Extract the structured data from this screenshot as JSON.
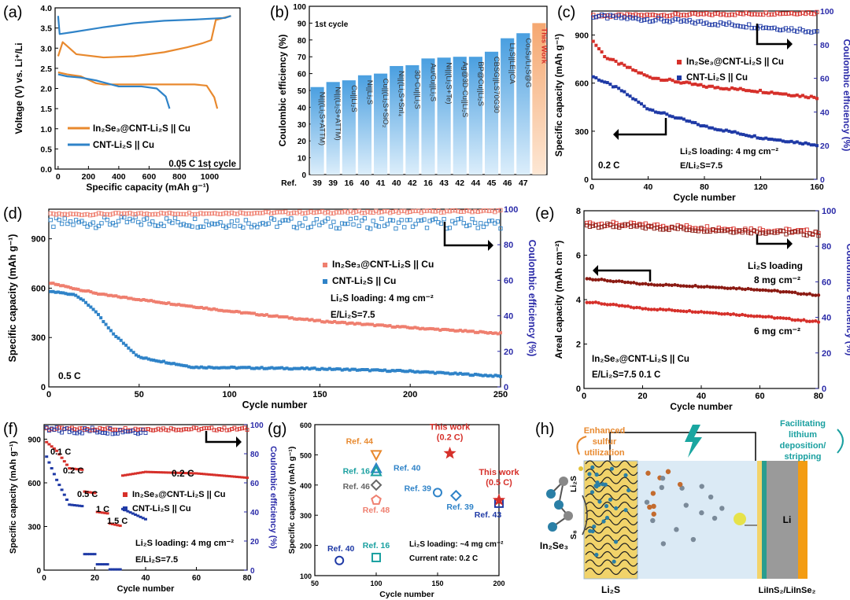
{
  "colors": {
    "orange": "#e8892e",
    "blue": "#2f83c8",
    "red": "#d6302a",
    "navy": "#1f3aa6",
    "salmon": "#ef7f6f",
    "teal": "#1aa0a0",
    "gray": "#666666",
    "darkred": "#8b1a12",
    "barLight": "#dceefb",
    "barDark": "#4a9fe0",
    "barWork": "#f5a770"
  },
  "chart_data": [
    {
      "panel": "(a)",
      "type": "line",
      "xlabel": "Specific capacity (mAh g⁻¹)",
      "ylabel": "Voltage (V) vs. Li⁺/Li",
      "xlim": [
        -20,
        1200
      ],
      "ylim": [
        0,
        4.0
      ],
      "xticks": [
        "0",
        "200",
        "400",
        "600",
        "800",
        "1000"
      ],
      "yticks": [
        "0.0",
        "0.5",
        "1.0",
        "1.5",
        "2.0",
        "2.5",
        "3.0",
        "3.5",
        "4.0"
      ],
      "series": [
        {
          "name": "In₂Se₃@CNT-Li₂S || Cu",
          "color": "orange",
          "charge": [
            [
              0,
              2.8
            ],
            [
              30,
              3.15
            ],
            [
              120,
              2.85
            ],
            [
              300,
              2.77
            ],
            [
              500,
              2.8
            ],
            [
              700,
              2.9
            ],
            [
              850,
              3.02
            ],
            [
              950,
              3.12
            ],
            [
              1010,
              3.2
            ],
            [
              1040,
              3.7
            ],
            [
              1140,
              3.8
            ]
          ],
          "discharge": [
            [
              0,
              2.4
            ],
            [
              60,
              2.35
            ],
            [
              150,
              2.3
            ],
            [
              250,
              2.13
            ],
            [
              300,
              2.1
            ],
            [
              500,
              2.1
            ],
            [
              700,
              2.1
            ],
            [
              900,
              2.1
            ],
            [
              980,
              2.07
            ],
            [
              1030,
              1.78
            ],
            [
              1050,
              1.5
            ]
          ]
        },
        {
          "name": "CNT-Li₂S || Cu",
          "color": "blue",
          "charge": [
            [
              0,
              3.8
            ],
            [
              10,
              3.35
            ],
            [
              100,
              3.4
            ],
            [
              300,
              3.52
            ],
            [
              500,
              3.62
            ],
            [
              700,
              3.68
            ],
            [
              900,
              3.71
            ],
            [
              1100,
              3.75
            ],
            [
              1140,
              3.8
            ]
          ],
          "discharge": [
            [
              0,
              2.35
            ],
            [
              60,
              2.3
            ],
            [
              150,
              2.27
            ],
            [
              250,
              2.2
            ],
            [
              400,
              2.05
            ],
            [
              550,
              2.05
            ],
            [
              650,
              2.0
            ],
            [
              710,
              1.8
            ],
            [
              735,
              1.5
            ]
          ]
        }
      ],
      "annotations": [
        "0.05 C",
        "1st cycle"
      ]
    },
    {
      "panel": "(b)",
      "type": "bar",
      "ylabel": "Coulombic efficiency (%)",
      "ylim": [
        0,
        100
      ],
      "yticks": [
        "0",
        "10",
        "20",
        "30",
        "40",
        "50",
        "60",
        "70",
        "80",
        "90",
        "100"
      ],
      "title": "1st cycle",
      "xprefix": "Ref.",
      "categories": [
        "Ni||(Li₂S+ATTM)",
        "Ni||(Li₂S+ATTM)",
        "Cu||Li₂S",
        "Ni||Li₂S",
        "Cu||(Li₂S+SiO₂",
        "Ni||(Li₂S+SnI₄",
        "3D-Cu||Li₂S",
        "Au/Cu||Li₂S",
        "Ni||(Li₂S+Te)",
        "Ag@3D-Cu||Li₂S",
        "BP@Cu||Li₂S",
        "CBSG||LS70G30",
        "Li₂S||LE||CA",
        "Co₉S₈/Li₂S@G",
        "This Work"
      ],
      "refs": [
        "39",
        "39",
        "16",
        "40",
        "41",
        "40",
        "42",
        "16",
        "43",
        "42",
        "44",
        "45",
        "46",
        "47",
        ""
      ],
      "values": [
        52,
        55,
        56,
        59,
        60,
        64.5,
        65,
        69,
        69.5,
        70,
        70,
        73,
        81,
        84,
        90
      ]
    },
    {
      "panel": "(c)",
      "type": "scatter",
      "xlabel": "Cycle number",
      "ylabel": "Specific capacity (mAh g⁻¹)",
      "y2label": "Coulombic efficiency (%)",
      "xlim": [
        0,
        160
      ],
      "ylim": [
        0,
        1050
      ],
      "y2lim": [
        0,
        100
      ],
      "xticks": [
        "0",
        "40",
        "80",
        "120",
        "160"
      ],
      "yticks": [
        "0",
        "300",
        "600",
        "900"
      ],
      "y2ticks": [
        "0",
        "20",
        "40",
        "60",
        "80",
        "100"
      ],
      "series": [
        {
          "name": "In₂Se₃@CNT-Li₂S || Cu",
          "color": "red",
          "cap": [
            [
              1,
              860
            ],
            [
              10,
              760
            ],
            [
              40,
              640
            ],
            [
              80,
              580
            ],
            [
              120,
              550
            ],
            [
              160,
              510
            ]
          ],
          "ce": [
            [
              1,
              97
            ],
            [
              160,
              99
            ]
          ]
        },
        {
          "name": "CNT-Li₂S || Cu",
          "color": "navy",
          "cap": [
            [
              1,
              640
            ],
            [
              20,
              560
            ],
            [
              40,
              440
            ],
            [
              80,
              330
            ],
            [
              120,
              260
            ],
            [
              160,
              215
            ]
          ],
          "ce": [
            [
              1,
              97
            ],
            [
              40,
              95
            ],
            [
              100,
              92
            ],
            [
              160,
              88
            ]
          ]
        }
      ],
      "annotations": [
        "0.2 C",
        "Li₂S loading: 4 mg cm⁻²",
        "E/Li₂S=7.5"
      ]
    },
    {
      "panel": "(d)",
      "type": "scatter",
      "xlabel": "Cycle number",
      "ylabel": "Specific capacity (mAh g⁻¹)",
      "y2label": "Coulombic efficiency (%)",
      "xlim": [
        0,
        250
      ],
      "ylim": [
        0,
        1080
      ],
      "y2lim": [
        0,
        100
      ],
      "xticks": [
        "0",
        "50",
        "100",
        "150",
        "200",
        "250"
      ],
      "yticks": [
        "0",
        "300",
        "600",
        "900"
      ],
      "y2ticks": [
        "0",
        "20",
        "40",
        "60",
        "80",
        "100"
      ],
      "series": [
        {
          "name": "In₂Se₃@CNT-Li₂S || Cu",
          "color": "salmon",
          "cap": [
            [
              1,
              630
            ],
            [
              30,
              560
            ],
            [
              100,
              460
            ],
            [
              150,
              400
            ],
            [
              200,
              360
            ],
            [
              250,
              325
            ]
          ],
          "ce": [
            [
              1,
              97
            ],
            [
              250,
              99
            ]
          ]
        },
        {
          "name": "CNT-Li₂S || Cu",
          "color": "blue",
          "cap": [
            [
              1,
              580
            ],
            [
              15,
              560
            ],
            [
              25,
              470
            ],
            [
              35,
              330
            ],
            [
              50,
              180
            ],
            [
              80,
              120
            ],
            [
              150,
              110
            ],
            [
              200,
              95
            ],
            [
              250,
              65
            ]
          ],
          "ce": [
            [
              1,
              92
            ],
            [
              50,
              93
            ],
            [
              150,
              92
            ],
            [
              250,
              92
            ]
          ]
        }
      ],
      "annotations": [
        "0.5 C",
        "Li₂S loading: 4 mg cm⁻²",
        "E/Li₂S=7.5"
      ]
    },
    {
      "panel": "(e)",
      "type": "scatter",
      "xlabel": "Cycle number",
      "ylabel": "Areal capacity (mAh cm⁻²)",
      "y2label": "Coulombic efficiency (%)",
      "xlim": [
        0,
        80
      ],
      "ylim": [
        0,
        8
      ],
      "y2lim": [
        0,
        100
      ],
      "xticks": [
        "0",
        "20",
        "40",
        "60",
        "80"
      ],
      "yticks": [
        "0",
        "2",
        "4",
        "6",
        "8"
      ],
      "y2ticks": [
        "0",
        "20",
        "40",
        "60",
        "80",
        "100"
      ],
      "series": [
        {
          "name": "8 mg cm⁻²",
          "color": "darkred",
          "cap": [
            [
              1,
              4.95
            ],
            [
              20,
              4.7
            ],
            [
              40,
              4.6
            ],
            [
              60,
              4.45
            ],
            [
              80,
              4.2
            ]
          ],
          "ce": [
            [
              1,
              93
            ],
            [
              80,
              88
            ]
          ]
        },
        {
          "name": "6 mg cm⁻²",
          "color": "red",
          "cap": [
            [
              1,
              3.9
            ],
            [
              20,
              3.6
            ],
            [
              40,
              3.45
            ],
            [
              60,
              3.25
            ],
            [
              80,
              3.0
            ]
          ],
          "ce": [
            [
              1,
              92
            ],
            [
              80,
              87
            ]
          ]
        }
      ],
      "annotations": [
        "Li₂S loading",
        "8 mg cm⁻²",
        "6 mg cm⁻²",
        "In₂Se₃@CNT-Li₂S || Cu",
        "E/Li₂S=7.5   0.1 C"
      ]
    },
    {
      "panel": "(f)",
      "type": "scatter",
      "xlabel": "Cycle number",
      "ylabel": "Specific capacity (mAh g⁻¹)",
      "y2label": "Coulombic efficiency (%)",
      "xlim": [
        0,
        80
      ],
      "ylim": [
        0,
        1000
      ],
      "y2lim": [
        0,
        100
      ],
      "xticks": [
        "0",
        "20",
        "40",
        "60",
        "80"
      ],
      "yticks": [
        "0",
        "300",
        "600",
        "900"
      ],
      "y2ticks": [
        "0",
        "20",
        "40",
        "60",
        "80",
        "100"
      ],
      "rate_labels": [
        "0.1 C",
        "0.2 C",
        "0.5 C",
        "1 C",
        "1.5 C",
        "0.2 C"
      ],
      "series": [
        {
          "name": "In₂Se₃@CNT-Li₂S || Cu",
          "color": "red",
          "cap": [
            [
              1,
              880
            ],
            [
              3,
              850
            ],
            [
              5,
              820
            ],
            [
              10,
              700
            ],
            [
              15,
              690
            ],
            [
              16,
              540
            ],
            [
              20,
              530
            ],
            [
              21,
              400
            ],
            [
              25,
              390
            ],
            [
              26,
              320
            ],
            [
              30,
              305
            ],
            [
              31,
              650
            ],
            [
              40,
              675
            ],
            [
              60,
              665
            ],
            [
              80,
              635
            ]
          ]
        },
        {
          "name": "CNT-Li₂S || Cu",
          "color": "navy",
          "cap": [
            [
              1,
              780
            ],
            [
              5,
              620
            ],
            [
              10,
              450
            ],
            [
              15,
              440
            ],
            [
              16,
              110
            ],
            [
              20,
              110
            ],
            [
              21,
              40
            ],
            [
              25,
              40
            ],
            [
              26,
              5
            ],
            [
              30,
              5
            ],
            [
              31,
              420
            ],
            [
              40,
              350
            ]
          ]
        }
      ],
      "annotations": [
        "Li₂S loading: 4 mg cm⁻²",
        "E/Li₂S=7.5"
      ]
    },
    {
      "panel": "(g)",
      "type": "scatter",
      "xlabel": "Cycle number",
      "ylabel": "Specific capacity (mAh g⁻¹)",
      "xlim": [
        50,
        200
      ],
      "ylim": [
        100,
        600
      ],
      "xticks": [
        "50",
        "100",
        "150",
        "200"
      ],
      "yticks": [
        "100",
        "200",
        "300",
        "400",
        "500",
        "600"
      ],
      "points": [
        {
          "label": "Ref. 44",
          "x": 100,
          "y": 500,
          "marker": "triangle-down",
          "color": "orange"
        },
        {
          "label": "Ref. 40",
          "x": 100,
          "y": 455,
          "marker": "triangle",
          "color": "blue"
        },
        {
          "label": "Ref. 16",
          "x": 100,
          "y": 445,
          "marker": "triangle",
          "color": "teal"
        },
        {
          "label": "Ref. 46",
          "x": 100,
          "y": 400,
          "marker": "diamond",
          "color": "gray"
        },
        {
          "label": "Ref. 48",
          "x": 100,
          "y": 350,
          "marker": "pentagon",
          "color": "salmon"
        },
        {
          "label": "Ref. 39",
          "x": 150,
          "y": 375,
          "marker": "circle",
          "color": "blue"
        },
        {
          "label": "Ref. 39",
          "x": 165,
          "y": 365,
          "marker": "diamond",
          "color": "blue"
        },
        {
          "label": "Ref. 43",
          "x": 200,
          "y": 340,
          "marker": "square",
          "color": "navy"
        },
        {
          "label": "Ref. 40",
          "x": 70,
          "y": 150,
          "marker": "circle",
          "color": "navy"
        },
        {
          "label": "Ref. 16",
          "x": 100,
          "y": 160,
          "marker": "square",
          "color": "teal"
        },
        {
          "label": "This work (0.2 C)",
          "x": 160,
          "y": 505,
          "marker": "star",
          "color": "red"
        },
        {
          "label": "This work (0.5 C)",
          "x": 200,
          "y": 350,
          "marker": "star",
          "color": "red"
        }
      ],
      "annotations": [
        "Li₂S loading: ~4 mg cm⁻²",
        "Current rate: 0.2 C"
      ]
    }
  ],
  "panels": {
    "a": {
      "tag": "(a)",
      "legend1": "In₂Se₃@CNT-Li₂S || Cu",
      "legend2": "CNT-Li₂S || Cu",
      "note": "0.05 C  1st cycle"
    },
    "b": {
      "tag": "(b)"
    },
    "c": {
      "tag": "(c)"
    },
    "d": {
      "tag": "(d)"
    },
    "e": {
      "tag": "(e)"
    },
    "f": {
      "tag": "(f)"
    },
    "g": {
      "tag": "(g)",
      "note1": "Li₂S loading: ~4 mg cm⁻²",
      "note2": "Current rate: 0.2 C"
    },
    "h": {
      "tag": "(h)",
      "left_text": "Enhanced sulfur utilization",
      "right_text": "Facilitating lithium deposition/ stripping",
      "li2s_label": "Li₂S",
      "s8_label": "S₈",
      "in2se3_label": "In₂Se₃",
      "li_label": "Li",
      "bottom_left": "Li₂S",
      "bottom_right": "LiInS₂/LiInSe₂",
      "side_li2s": "Li₂S"
    }
  }
}
